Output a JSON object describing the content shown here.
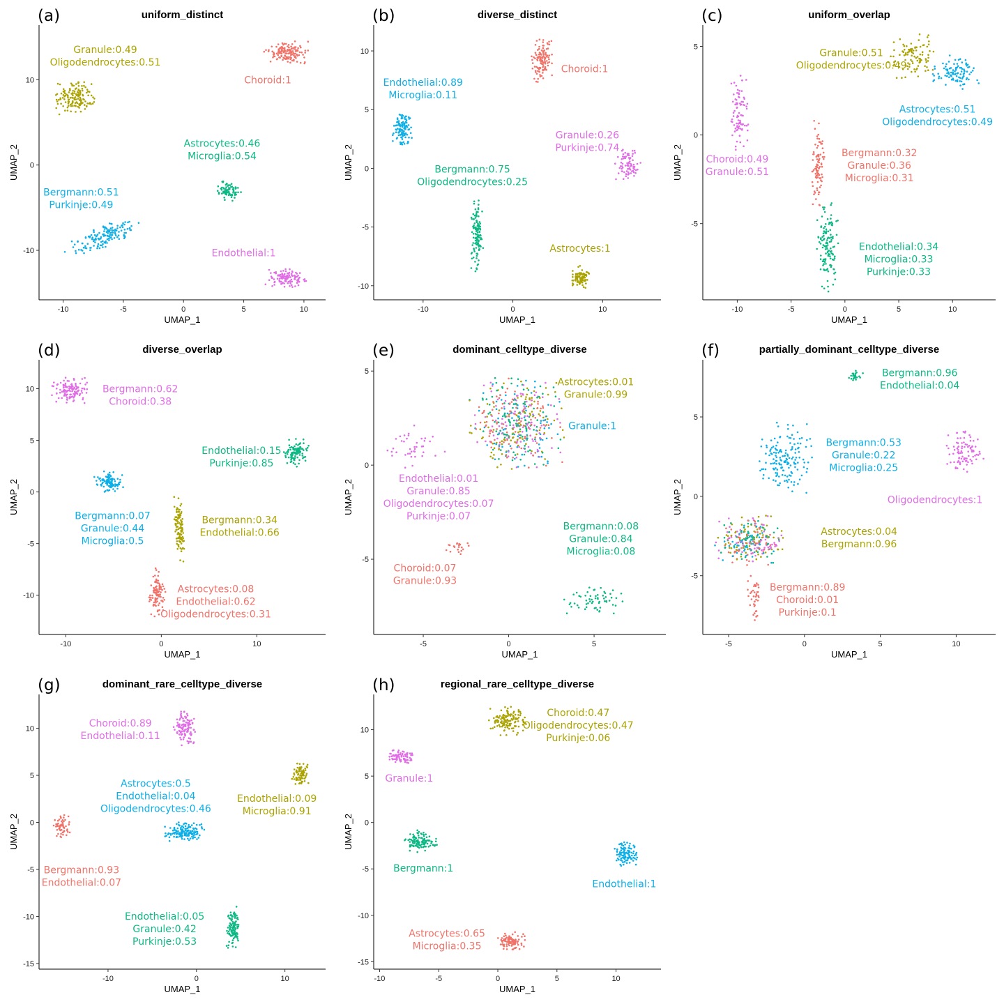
{
  "palette": {
    "red": "#F0736A",
    "olive": "#ABA300",
    "green": "#0CB884",
    "blue": "#0EAFE6",
    "pink": "#E06DE6"
  },
  "axis_labels": {
    "x": "UMAP_1",
    "y": "UMAP_2"
  },
  "chart_data": [
    {
      "type": "scatter",
      "tag": "(a)",
      "title": "uniform_distinct",
      "xlim": [
        -12,
        11.8
      ],
      "ylim": [
        -15.8,
        16.4
      ],
      "xticks": [
        -10,
        -5,
        0,
        5,
        10
      ],
      "yticks": [
        -10,
        0,
        10
      ],
      "clusters": [
        {
          "color": "#F0736A",
          "x": 8.6,
          "y": 13.2,
          "rx": 2.0,
          "ry": 1.3,
          "n": 150,
          "label": [
            "Choroid:1"
          ],
          "lx": 7.0,
          "ly": 10.0
        },
        {
          "color": "#ABA300",
          "x": -9.0,
          "y": 7.9,
          "rx": 1.8,
          "ry": 2.0,
          "n": 150,
          "label": [
            "Granule:0.49",
            "Oligodendrocytes:0.51"
          ],
          "lx": -6.5,
          "ly": 12.8
        },
        {
          "color": "#0CB884",
          "x": 3.8,
          "y": -3.0,
          "rx": 1.1,
          "ry": 1.2,
          "n": 80,
          "label": [
            "Astrocytes:0.46",
            "Microglia:0.54"
          ],
          "lx": 3.2,
          "ly": 1.8
        },
        {
          "color": "#0EAFE6",
          "x": -6.8,
          "y": -8.5,
          "rx": 3.6,
          "ry": 1.2,
          "n": 150,
          "angle": 30,
          "label": [
            "Bergmann:0.51",
            "Purkinje:0.49"
          ],
          "lx": -8.5,
          "ly": -3.9
        },
        {
          "color": "#E06DE6",
          "x": 8.5,
          "y": -13.2,
          "rx": 1.7,
          "ry": 1.1,
          "n": 120,
          "label": [
            "Endothelial:1"
          ],
          "lx": 5.0,
          "ly": -10.3
        }
      ]
    },
    {
      "type": "scatter",
      "tag": "(b)",
      "title": "diverse_distinct",
      "xlim": [
        -15.5,
        16.5
      ],
      "ylim": [
        -11.2,
        12.2
      ],
      "xticks": [
        -10,
        0,
        10
      ],
      "yticks": [
        -10,
        -5,
        0,
        5,
        10
      ],
      "clusters": [
        {
          "color": "#F0736A",
          "x": 3.2,
          "y": 9.2,
          "rx": 1.2,
          "ry": 1.9,
          "n": 120,
          "label": [
            "Choroid:1"
          ],
          "lx": 8.0,
          "ly": 8.5
        },
        {
          "color": "#0EAFE6",
          "x": -12.3,
          "y": 3.3,
          "rx": 1.1,
          "ry": 1.3,
          "n": 120,
          "label": [
            "Endothelial:0.89",
            "Microglia:0.11"
          ],
          "lx": -10.0,
          "ly": 6.8
        },
        {
          "color": "#E06DE6",
          "x": 12.8,
          "y": 0.3,
          "rx": 1.5,
          "ry": 1.3,
          "n": 80,
          "label": [
            "Granule:0.26",
            "Purkinje:0.74"
          ],
          "lx": 8.3,
          "ly": 2.3
        },
        {
          "color": "#0CB884",
          "x": -4.0,
          "y": -5.6,
          "rx": 0.7,
          "ry": 3.2,
          "n": 130,
          "label": [
            "Bergmann:0.75",
            "Oligodendrocytes:0.25"
          ],
          "lx": -4.5,
          "ly": -0.6
        },
        {
          "color": "#ABA300",
          "x": 7.5,
          "y": -9.3,
          "rx": 1.0,
          "ry": 1.0,
          "n": 90,
          "label": [
            "Astrocytes:1"
          ],
          "lx": 7.5,
          "ly": -6.8
        }
      ]
    },
    {
      "type": "scatter",
      "tag": "(c)",
      "title": "uniform_overlap",
      "xlim": [
        -13.2,
        14.0
      ],
      "ylim": [
        -9.3,
        6.2
      ],
      "xticks": [
        -10,
        -5,
        0,
        5,
        10
      ],
      "yticks": [
        -5,
        0,
        5
      ],
      "clusters": [
        {
          "color": "#ABA300",
          "x": 6.2,
          "y": 4.5,
          "rx": 2.2,
          "ry": 1.3,
          "n": 100,
          "label": [
            "Granule:0.51",
            "Oligodendrocytes:0.49"
          ],
          "lx": 0.6,
          "ly": 4.3
        },
        {
          "color": "#0EAFE6",
          "x": 10.3,
          "y": 3.5,
          "rx": 2.2,
          "ry": 1.0,
          "n": 100,
          "label": [
            "Astrocytes:0.51",
            "Oligodendrocytes:0.49"
          ],
          "lx": 8.6,
          "ly": 1.1
        },
        {
          "color": "#E06DE6",
          "x": -9.8,
          "y": 1.2,
          "rx": 0.9,
          "ry": 2.2,
          "n": 90,
          "label": [
            "Choroid:0.49",
            "Granule:0.51"
          ],
          "lx": -10.0,
          "ly": -1.7
        },
        {
          "color": "#F0736A",
          "x": -2.5,
          "y": -1.8,
          "rx": 0.6,
          "ry": 2.6,
          "n": 90,
          "label": [
            "Bergmann:0.32",
            "Granule:0.36",
            "Microglia:0.31"
          ],
          "lx": 3.2,
          "ly": -1.7
        },
        {
          "color": "#0CB884",
          "x": -1.6,
          "y": -6.3,
          "rx": 1.0,
          "ry": 2.6,
          "n": 130,
          "label": [
            "Endothelial:0.34",
            "Microglia:0.33",
            "Purkinje:0.33"
          ],
          "lx": 5.0,
          "ly": -7.0
        }
      ]
    },
    {
      "type": "scatter",
      "tag": "(d)",
      "title": "diverse_overlap",
      "xlim": [
        -12.8,
        17.2
      ],
      "ylim": [
        -13.8,
        12.8
      ],
      "xticks": [
        -10,
        0,
        10
      ],
      "yticks": [
        -10,
        -5,
        0,
        5,
        10
      ],
      "clusters": [
        {
          "color": "#E06DE6",
          "x": -9.5,
          "y": 9.8,
          "rx": 2.0,
          "ry": 1.3,
          "n": 120,
          "label": [
            "Bergmann:0.62",
            "Choroid:0.38"
          ],
          "lx": -2.2,
          "ly": 9.4
        },
        {
          "color": "#0CB884",
          "x": 14.0,
          "y": 3.8,
          "rx": 1.5,
          "ry": 1.4,
          "n": 110,
          "label": [
            "Endothelial:0.15",
            "Purkinje:0.85"
          ],
          "lx": 8.4,
          "ly": 3.4
        },
        {
          "color": "#0EAFE6",
          "x": -5.5,
          "y": 1.0,
          "rx": 1.7,
          "ry": 1.2,
          "n": 100,
          "label": [
            "Bergmann:0.07",
            "Granule:0.44",
            "Microglia:0.5"
          ],
          "lx": -5.1,
          "ly": -3.5
        },
        {
          "color": "#ABA300",
          "x": 1.9,
          "y": -3.6,
          "rx": 0.6,
          "ry": 3.2,
          "n": 110,
          "label": [
            "Bergmann:0.34",
            "Endothelial:0.66"
          ],
          "lx": 8.2,
          "ly": -3.3
        },
        {
          "color": "#F0736A",
          "x": -0.4,
          "y": -9.8,
          "rx": 0.9,
          "ry": 2.5,
          "n": 100,
          "label": [
            "Astrocytes:0.08",
            "Endothelial:0.62",
            "Oligodendrocytes:0.31"
          ],
          "lx": 5.7,
          "ly": -10.6
        }
      ]
    },
    {
      "type": "scatter",
      "tag": "(e)",
      "title": "dominant_celltype_diverse",
      "xlim": [
        -7.9,
        9.2
      ],
      "ylim": [
        -9.0,
        5.6
      ],
      "xticks": [
        -5,
        0,
        5
      ],
      "yticks": [
        -5,
        0,
        5
      ],
      "clusters": [
        {
          "color": "mixed",
          "x": 0.5,
          "y": 2.2,
          "rx": 2.8,
          "ry": 2.5,
          "n": 520,
          "label": [
            "Astrocytes:0.01",
            "Granule:0.99"
          ],
          "lx": 5.1,
          "ly": 4.1
        },
        {
          "color": "#E06DE6",
          "x": -5.5,
          "y": 1.0,
          "rx": 1.8,
          "ry": 1.2,
          "n": 40,
          "label": [
            "Endothelial:0.01",
            "Granule:0.85",
            "Oligodendrocytes:0.07",
            "Purkinje:0.07"
          ],
          "lx": -4.1,
          "ly": -1.7
        },
        {
          "color": "#F0736A",
          "x": -3.0,
          "y": -4.4,
          "rx": 1.0,
          "ry": 0.5,
          "n": 20,
          "label": [
            "Choroid:0.07",
            "Granule:0.93"
          ],
          "lx": -4.9,
          "ly": -5.8
        },
        {
          "color": "#0CB884",
          "x": 4.8,
          "y": -7.2,
          "rx": 1.9,
          "ry": 0.8,
          "n": 60,
          "label": [
            "Bergmann:0.08",
            "Granule:0.84",
            "Microglia:0.08"
          ],
          "lx": 5.4,
          "ly": -3.9
        }
      ],
      "extra_labels": [
        {
          "color": "#0EAFE6",
          "text": [
            "Granule:1"
          ],
          "lx": 4.9,
          "ly": 2.1
        }
      ]
    },
    {
      "type": "scatter",
      "tag": "(f)",
      "title": "partially_dominant_celltype_diverse",
      "xlim": [
        -6.7,
        12.6
      ],
      "ylim": [
        -8.7,
        8.6
      ],
      "xticks": [
        -5,
        0,
        5,
        10
      ],
      "yticks": [
        -5,
        0,
        5
      ],
      "clusters": [
        {
          "color": "#0CB884",
          "x": 3.3,
          "y": 7.6,
          "rx": 0.6,
          "ry": 0.4,
          "n": 25,
          "label": [
            "Bergmann:0.96",
            "Endothelial:0.04"
          ],
          "lx": 7.6,
          "ly": 7.4
        },
        {
          "color": "#0EAFE6",
          "x": -1.3,
          "y": 2.4,
          "rx": 1.8,
          "ry": 2.3,
          "n": 160,
          "label": [
            "Bergmann:0.53",
            "Granule:0.22",
            "Microglia:0.25"
          ],
          "lx": 3.9,
          "ly": 2.6
        },
        {
          "color": "#E06DE6",
          "x": 10.6,
          "y": 2.7,
          "rx": 1.3,
          "ry": 1.4,
          "n": 90,
          "label": [
            "Oligodendrocytes:1"
          ],
          "lx": 8.6,
          "ly": -0.2
        },
        {
          "color": "mixed",
          "x": -3.6,
          "y": -2.8,
          "rx": 2.3,
          "ry": 1.6,
          "n": 300,
          "label": [
            "Astrocytes:0.04",
            "Bergmann:0.96"
          ],
          "lx": 3.6,
          "ly": -2.6
        },
        {
          "color": "#F0736A",
          "x": -3.3,
          "y": -6.3,
          "rx": 0.5,
          "ry": 1.5,
          "n": 40,
          "label": [
            "Bergmann:0.89",
            "Choroid:0.01",
            "Purkinje:0.1"
          ],
          "lx": 0.2,
          "ly": -6.5
        }
      ]
    },
    {
      "type": "scatter",
      "tag": "(g)",
      "title": "dominant_rare_celltype_diverse",
      "xlim": [
        -17.8,
        14.6
      ],
      "ylim": [
        -15.6,
        13.6
      ],
      "xticks": [
        -10,
        0,
        10
      ],
      "yticks": [
        -15,
        -10,
        -5,
        0,
        5,
        10
      ],
      "clusters": [
        {
          "color": "#E06DE6",
          "x": -1.3,
          "y": 10.0,
          "rx": 1.3,
          "ry": 1.8,
          "n": 110,
          "label": [
            "Choroid:0.89",
            "Endothelial:0.11"
          ],
          "lx": -8.6,
          "ly": 9.9
        },
        {
          "color": "#ABA300",
          "x": 11.8,
          "y": 5.2,
          "rx": 1.0,
          "ry": 1.3,
          "n": 80,
          "label": [
            "Endothelial:0.09",
            "Microglia:0.91"
          ],
          "lx": 9.1,
          "ly": 1.9
        },
        {
          "color": "#0EAFE6",
          "x": -1.3,
          "y": -1.0,
          "rx": 2.3,
          "ry": 1.0,
          "n": 150,
          "label": [
            "Astrocytes:0.5",
            "Endothelial:0.04",
            "Oligodendrocytes:0.46"
          ],
          "lx": -4.6,
          "ly": 2.8
        },
        {
          "color": "#F0736A",
          "x": -15.3,
          "y": -0.5,
          "rx": 1.0,
          "ry": 1.3,
          "n": 60,
          "label": [
            "Bergmann:0.93",
            "Endothelial:0.07"
          ],
          "lx": -13.0,
          "ly": -5.7
        },
        {
          "color": "#0CB884",
          "x": 4.2,
          "y": -11.3,
          "rx": 0.8,
          "ry": 2.4,
          "n": 110,
          "label": [
            "Endothelial:0.05",
            "Granule:0.42",
            "Purkinje:0.53"
          ],
          "lx": -3.6,
          "ly": -11.3
        }
      ]
    },
    {
      "type": "scatter",
      "tag": "(h)",
      "title": "regional_rare_celltype_diverse",
      "xlim": [
        -10.5,
        13.8
      ],
      "ylim": [
        -15.8,
        13.8
      ],
      "xticks": [
        -10,
        -5,
        0,
        5,
        10
      ],
      "yticks": [
        -15,
        -10,
        -5,
        0,
        5,
        10
      ],
      "clusters": [
        {
          "color": "#ABA300",
          "x": 0.8,
          "y": 11.0,
          "rx": 1.7,
          "ry": 1.6,
          "n": 130,
          "label": [
            "Choroid:0.47",
            "Oligodendrocytes:0.47",
            "Purkinje:0.06"
          ],
          "lx": 6.8,
          "ly": 10.5
        },
        {
          "color": "#E06DE6",
          "x": -8.2,
          "y": 7.0,
          "rx": 1.1,
          "ry": 0.8,
          "n": 80,
          "label": [
            "Granule:1"
          ],
          "lx": -7.5,
          "ly": 4.8
        },
        {
          "color": "#0CB884",
          "x": -6.5,
          "y": -2.0,
          "rx": 1.4,
          "ry": 1.2,
          "n": 120,
          "label": [
            "Bergmann:1"
          ],
          "lx": -6.3,
          "ly": -4.9
        },
        {
          "color": "#0EAFE6",
          "x": 10.8,
          "y": -3.4,
          "rx": 1.0,
          "ry": 1.5,
          "n": 110,
          "label": [
            "Endothelial:1"
          ],
          "lx": 10.7,
          "ly": -6.6
        },
        {
          "color": "#F0736A",
          "x": 1.2,
          "y": -12.8,
          "rx": 1.3,
          "ry": 1.0,
          "n": 100,
          "label": [
            "Astrocytes:0.65",
            "Microglia:0.35"
          ],
          "lx": -4.3,
          "ly": -12.6
        }
      ]
    }
  ]
}
